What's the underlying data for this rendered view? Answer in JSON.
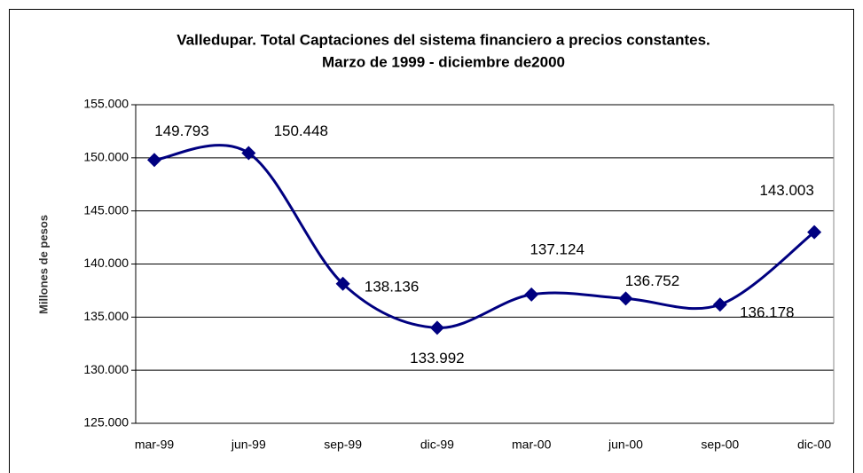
{
  "chart_data": {
    "type": "line",
    "title": "Valledupar. Total Captaciones del sistema financiero a precios constantes.",
    "subtitle": "Marzo de 1999 - diciembre de2000",
    "y_label": "Millones de pesos",
    "categories": [
      "mar-99",
      "jun-99",
      "sep-99",
      "dic-99",
      "mar-00",
      "jun-00",
      "sep-00",
      "dic-00"
    ],
    "series": [
      {
        "name": "Captaciones",
        "color": "#000080",
        "values": [
          149793,
          150448,
          138136,
          133992,
          137124,
          136752,
          136178,
          143003
        ],
        "value_labels": [
          "149.793",
          "150.448",
          "138.136",
          "133.992",
          "137.124",
          "136.752",
          "136.178",
          "143.003"
        ]
      }
    ],
    "ylim": [
      125000,
      155000
    ],
    "yticks": [
      {
        "value": 125000,
        "label": "125.000"
      },
      {
        "value": 130000,
        "label": "130.000"
      },
      {
        "value": 135000,
        "label": "135.000"
      },
      {
        "value": 140000,
        "label": "140.000"
      },
      {
        "value": 145000,
        "label": "145.000"
      },
      {
        "value": 150000,
        "label": "150.000"
      },
      {
        "value": 155000,
        "label": "155.000"
      }
    ],
    "grid": true,
    "smooth": true
  }
}
